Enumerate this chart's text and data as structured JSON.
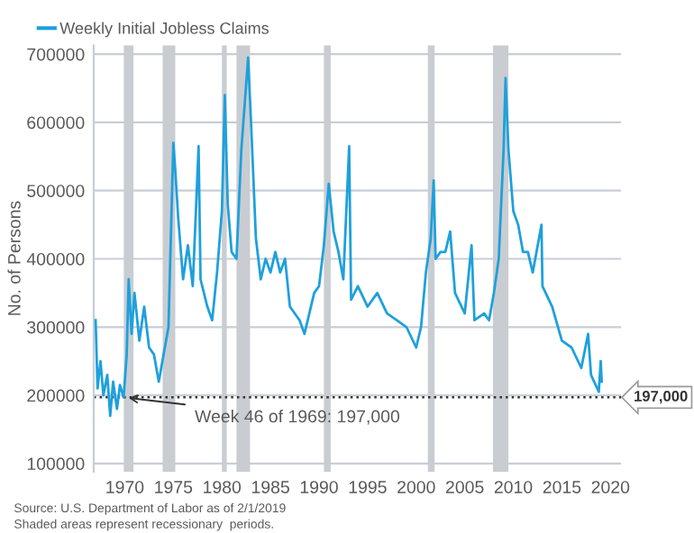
{
  "chart_data": {
    "type": "line",
    "ylabel": "No. of Persons",
    "x": [
      1967.0,
      1967.2,
      1967.5,
      1967.8,
      1968.2,
      1968.5,
      1968.8,
      1969.2,
      1969.5,
      1969.88,
      1970.2,
      1970.4,
      1970.7,
      1971.0,
      1971.5,
      1972.0,
      1972.5,
      1973.0,
      1973.5,
      1974.0,
      1974.5,
      1975.0,
      1975.2,
      1975.5,
      1976.0,
      1976.5,
      1977.0,
      1977.6,
      1977.8,
      1978.5,
      1979.0,
      1979.5,
      1980.0,
      1980.3,
      1980.6,
      1981.0,
      1981.5,
      1982.0,
      1982.7,
      1983.0,
      1983.5,
      1984.0,
      1984.5,
      1985.0,
      1985.5,
      1986.0,
      1986.5,
      1987.0,
      1988.0,
      1988.5,
      1989.0,
      1989.5,
      1990.0,
      1990.5,
      1991.0,
      1991.5,
      1992.0,
      1992.5,
      1993.1,
      1993.3,
      1994.0,
      1995.0,
      1996.0,
      1997.0,
      1998.0,
      1999.0,
      2000.0,
      2000.5,
      2001.0,
      2001.5,
      2001.8,
      2002.0,
      2002.5,
      2003.0,
      2003.5,
      2004.0,
      2005.0,
      2005.7,
      2006.0,
      2007.0,
      2007.5,
      2008.0,
      2008.5,
      2009.0,
      2009.2,
      2009.5,
      2010.0,
      2010.5,
      2011.0,
      2011.5,
      2012.0,
      2012.9,
      2013.0,
      2014.0,
      2015.0,
      2016.0,
      2017.0,
      2017.7,
      2018.0,
      2018.8,
      2019.0,
      2019.1
    ],
    "series": [
      {
        "name": "Weekly Initial Jobless Claims",
        "color": "#1fa0dc",
        "values": [
          310000,
          210000,
          250000,
          200000,
          230000,
          170000,
          220000,
          180000,
          215000,
          197000,
          260000,
          370000,
          290000,
          350000,
          280000,
          330000,
          270000,
          260000,
          220000,
          260000,
          300000,
          570000,
          530000,
          460000,
          370000,
          420000,
          360000,
          565000,
          370000,
          330000,
          310000,
          380000,
          470000,
          640000,
          480000,
          410000,
          400000,
          560000,
          695000,
          600000,
          430000,
          370000,
          400000,
          380000,
          410000,
          380000,
          400000,
          330000,
          310000,
          290000,
          320000,
          350000,
          360000,
          420000,
          510000,
          440000,
          410000,
          370000,
          565000,
          340000,
          360000,
          330000,
          350000,
          320000,
          310000,
          300000,
          270000,
          300000,
          380000,
          430000,
          515000,
          400000,
          410000,
          410000,
          440000,
          350000,
          320000,
          420000,
          310000,
          320000,
          310000,
          350000,
          400000,
          560000,
          665000,
          560000,
          470000,
          450000,
          410000,
          410000,
          380000,
          450000,
          360000,
          330000,
          280000,
          270000,
          240000,
          290000,
          230000,
          205000,
          250000,
          220000
        ]
      }
    ],
    "xlim": [
      1966.8,
      2021.1
    ],
    "xticks": [
      1970,
      1975,
      1980,
      1985,
      1990,
      1995,
      2000,
      2005,
      2010,
      2015,
      2020
    ],
    "ylim": [
      88000,
      713000
    ],
    "yticks": [
      100000,
      200000,
      300000,
      400000,
      500000,
      600000,
      700000
    ],
    "grid": "y",
    "legend": "top left",
    "bands": [
      {
        "axis": "x",
        "from": 1969.9,
        "to": 1970.9,
        "color": "#c9cdd2"
      },
      {
        "axis": "x",
        "from": 1973.9,
        "to": 1975.2,
        "color": "#c9cdd2"
      },
      {
        "axis": "x",
        "from": 1980.0,
        "to": 1980.5,
        "color": "#c9cdd2"
      },
      {
        "axis": "x",
        "from": 1981.5,
        "to": 1982.9,
        "color": "#c9cdd2"
      },
      {
        "axis": "x",
        "from": 1990.5,
        "to": 1991.2,
        "color": "#c9cdd2"
      },
      {
        "axis": "x",
        "from": 2001.2,
        "to": 2001.9,
        "color": "#c9cdd2"
      },
      {
        "axis": "x",
        "from": 2007.9,
        "to": 2009.5,
        "color": "#c9cdd2"
      }
    ],
    "ref_lines": [
      {
        "axis": "y",
        "value": 197000,
        "label": "197,000",
        "color": "#333333",
        "line_style": "dotted"
      }
    ],
    "annotations": [
      {
        "text": "Week 46 of 1969: 197,000",
        "x": 1969.88,
        "y": 197000
      },
      "Source: U.S. Department of Labor as of 2/1/2019",
      "Shaded areas represent recessionary  periods."
    ]
  }
}
